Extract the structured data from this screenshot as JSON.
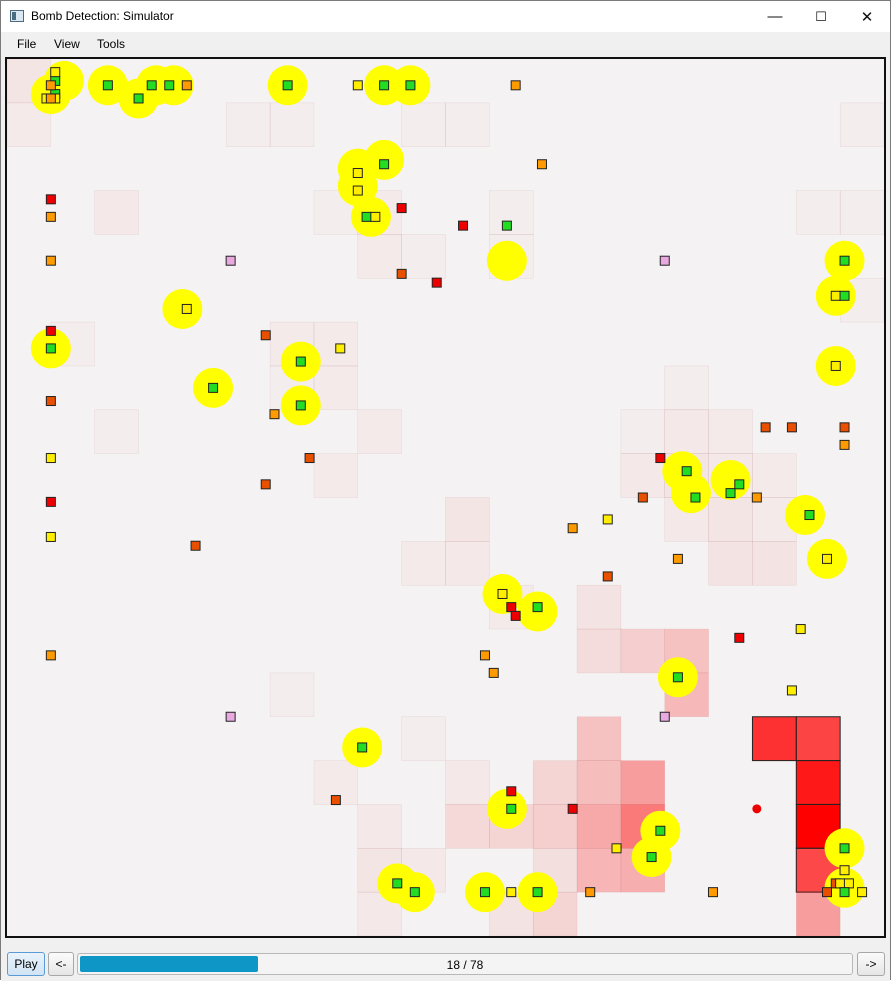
{
  "window": {
    "title": "Bomb Detection: Simulator",
    "minimize": "—",
    "maximize": "☐",
    "close": "✕"
  },
  "menu": [
    "File",
    "View",
    "Tools"
  ],
  "colors": {
    "background": "#f4f2f2",
    "detector_disc": "#ffff00",
    "agent_green": "#22dd22",
    "agent_yellow": "#ffee00",
    "agent_orange": "#ff9a00",
    "agent_dark_orange": "#e85000",
    "agent_red": "#ee0000",
    "agent_pink": "#e8a8e0",
    "heat": "#ff0000",
    "bomb_marker": "#ee0000"
  },
  "grid": {
    "cols": 20,
    "rows": 20
  },
  "heatmap": [
    {
      "c": 0,
      "r": 0,
      "v": 0.05
    },
    {
      "c": 0,
      "r": 1,
      "v": 0.03
    },
    {
      "c": 5,
      "r": 1,
      "v": 0.02
    },
    {
      "c": 6,
      "r": 1,
      "v": 0.02
    },
    {
      "c": 9,
      "r": 1,
      "v": 0.02
    },
    {
      "c": 10,
      "r": 1,
      "v": 0.02
    },
    {
      "c": 19,
      "r": 1,
      "v": 0.02
    },
    {
      "c": 2,
      "r": 3,
      "v": 0.04
    },
    {
      "c": 7,
      "r": 3,
      "v": 0.02
    },
    {
      "c": 8,
      "r": 3,
      "v": 0.03
    },
    {
      "c": 11,
      "r": 3,
      "v": 0.02
    },
    {
      "c": 18,
      "r": 3,
      "v": 0.02
    },
    {
      "c": 19,
      "r": 3,
      "v": 0.02
    },
    {
      "c": 8,
      "r": 4,
      "v": 0.03
    },
    {
      "c": 9,
      "r": 4,
      "v": 0.02
    },
    {
      "c": 11,
      "r": 4,
      "v": 0.02
    },
    {
      "c": 19,
      "r": 5,
      "v": 0.02
    },
    {
      "c": 6,
      "r": 6,
      "v": 0.03
    },
    {
      "c": 7,
      "r": 6,
      "v": 0.03
    },
    {
      "c": 1,
      "r": 6,
      "v": 0.02
    },
    {
      "c": 6,
      "r": 7,
      "v": 0.02
    },
    {
      "c": 7,
      "r": 7,
      "v": 0.03
    },
    {
      "c": 15,
      "r": 7,
      "v": 0.02
    },
    {
      "c": 2,
      "r": 8,
      "v": 0.02
    },
    {
      "c": 8,
      "r": 8,
      "v": 0.03
    },
    {
      "c": 14,
      "r": 8,
      "v": 0.02
    },
    {
      "c": 15,
      "r": 8,
      "v": 0.04
    },
    {
      "c": 16,
      "r": 8,
      "v": 0.03
    },
    {
      "c": 7,
      "r": 9,
      "v": 0.03
    },
    {
      "c": 14,
      "r": 9,
      "v": 0.04
    },
    {
      "c": 15,
      "r": 9,
      "v": 0.05
    },
    {
      "c": 16,
      "r": 9,
      "v": 0.04
    },
    {
      "c": 17,
      "r": 9,
      "v": 0.03
    },
    {
      "c": 10,
      "r": 10,
      "v": 0.05
    },
    {
      "c": 15,
      "r": 10,
      "v": 0.04
    },
    {
      "c": 16,
      "r": 10,
      "v": 0.05
    },
    {
      "c": 17,
      "r": 10,
      "v": 0.03
    },
    {
      "c": 9,
      "r": 11,
      "v": 0.03
    },
    {
      "c": 10,
      "r": 11,
      "v": 0.04
    },
    {
      "c": 16,
      "r": 11,
      "v": 0.06
    },
    {
      "c": 17,
      "r": 11,
      "v": 0.06
    },
    {
      "c": 11,
      "r": 12,
      "v": 0.03
    },
    {
      "c": 13,
      "r": 12,
      "v": 0.06
    },
    {
      "c": 13,
      "r": 13,
      "v": 0.09
    },
    {
      "c": 14,
      "r": 13,
      "v": 0.14
    },
    {
      "c": 15,
      "r": 13,
      "v": 0.2
    },
    {
      "c": 15,
      "r": 14,
      "v": 0.24
    },
    {
      "c": 6,
      "r": 14,
      "v": 0.02
    },
    {
      "c": 9,
      "r": 15,
      "v": 0.02
    },
    {
      "c": 13,
      "r": 15,
      "v": 0.2
    },
    {
      "c": 17,
      "r": 15,
      "v": 0.8
    },
    {
      "c": 18,
      "r": 15,
      "v": 0.72
    },
    {
      "c": 7,
      "r": 16,
      "v": 0.03
    },
    {
      "c": 10,
      "r": 16,
      "v": 0.04
    },
    {
      "c": 12,
      "r": 16,
      "v": 0.12
    },
    {
      "c": 13,
      "r": 16,
      "v": 0.22
    },
    {
      "c": 14,
      "r": 16,
      "v": 0.35
    },
    {
      "c": 18,
      "r": 16,
      "v": 0.9
    },
    {
      "c": 8,
      "r": 17,
      "v": 0.04
    },
    {
      "c": 10,
      "r": 17,
      "v": 0.1
    },
    {
      "c": 11,
      "r": 17,
      "v": 0.12
    },
    {
      "c": 12,
      "r": 17,
      "v": 0.15
    },
    {
      "c": 13,
      "r": 17,
      "v": 0.3
    },
    {
      "c": 14,
      "r": 17,
      "v": 0.5
    },
    {
      "c": 18,
      "r": 17,
      "v": 1.0
    },
    {
      "c": 8,
      "r": 18,
      "v": 0.05
    },
    {
      "c": 9,
      "r": 18,
      "v": 0.04
    },
    {
      "c": 12,
      "r": 18,
      "v": 0.08
    },
    {
      "c": 13,
      "r": 18,
      "v": 0.25
    },
    {
      "c": 14,
      "r": 18,
      "v": 0.28
    },
    {
      "c": 18,
      "r": 18,
      "v": 0.7
    },
    {
      "c": 8,
      "r": 19,
      "v": 0.04
    },
    {
      "c": 11,
      "r": 19,
      "v": 0.06
    },
    {
      "c": 12,
      "r": 19,
      "v": 0.12
    },
    {
      "c": 18,
      "r": 19,
      "v": 0.35
    }
  ],
  "detector_agents": [
    {
      "c": 1.3,
      "r": 0.5
    },
    {
      "c": 1.0,
      "r": 0.8
    },
    {
      "c": 2.3,
      "r": 0.6
    },
    {
      "c": 3.4,
      "r": 0.6
    },
    {
      "c": 3.0,
      "r": 0.9
    },
    {
      "c": 3.8,
      "r": 0.6
    },
    {
      "c": 6.4,
      "r": 0.6
    },
    {
      "c": 8.6,
      "r": 0.6
    },
    {
      "c": 9.2,
      "r": 0.6
    },
    {
      "c": 8.0,
      "r": 2.5
    },
    {
      "c": 8.6,
      "r": 2.3
    },
    {
      "c": 8.0,
      "r": 2.9
    },
    {
      "c": 8.3,
      "r": 3.6
    },
    {
      "c": 11.4,
      "r": 4.6
    },
    {
      "c": 4.0,
      "r": 5.7
    },
    {
      "c": 1.0,
      "r": 6.6
    },
    {
      "c": 6.7,
      "r": 6.9
    },
    {
      "c": 4.7,
      "r": 7.5
    },
    {
      "c": 6.7,
      "r": 7.9
    },
    {
      "c": 19.1,
      "r": 4.6
    },
    {
      "c": 18.9,
      "r": 5.4
    },
    {
      "c": 18.9,
      "r": 7.0
    },
    {
      "c": 15.4,
      "r": 9.4
    },
    {
      "c": 15.6,
      "r": 9.9
    },
    {
      "c": 16.5,
      "r": 9.6
    },
    {
      "c": 18.2,
      "r": 10.4
    },
    {
      "c": 18.7,
      "r": 11.4
    },
    {
      "c": 11.3,
      "r": 12.2
    },
    {
      "c": 12.1,
      "r": 12.6
    },
    {
      "c": 15.3,
      "r": 14.1
    },
    {
      "c": 8.1,
      "r": 15.7
    },
    {
      "c": 11.4,
      "r": 17.1
    },
    {
      "c": 14.9,
      "r": 17.6
    },
    {
      "c": 14.7,
      "r": 18.2
    },
    {
      "c": 19.1,
      "r": 18.0
    },
    {
      "c": 19.1,
      "r": 18.9
    },
    {
      "c": 8.9,
      "r": 18.8
    },
    {
      "c": 9.3,
      "r": 19.0
    },
    {
      "c": 10.9,
      "r": 19.0
    },
    {
      "c": 12.1,
      "r": 19.0
    }
  ],
  "agents": [
    {
      "c": 1.1,
      "r": 0.5,
      "k": "g"
    },
    {
      "c": 1.1,
      "r": 0.8,
      "k": "g"
    },
    {
      "c": 0.9,
      "r": 0.9,
      "k": "y"
    },
    {
      "c": 1.1,
      "r": 0.9,
      "k": "y"
    },
    {
      "c": 2.3,
      "r": 0.6,
      "k": "g"
    },
    {
      "c": 1.1,
      "r": 0.3,
      "k": "y"
    },
    {
      "c": 1.0,
      "r": 0.6,
      "k": "o"
    },
    {
      "c": 1.0,
      "r": 0.9,
      "k": "o"
    },
    {
      "c": 3.0,
      "r": 0.9,
      "k": "g"
    },
    {
      "c": 3.3,
      "r": 0.6,
      "k": "g"
    },
    {
      "c": 3.7,
      "r": 0.6,
      "k": "g"
    },
    {
      "c": 4.1,
      "r": 0.6,
      "k": "o"
    },
    {
      "c": 6.4,
      "r": 0.6,
      "k": "g"
    },
    {
      "c": 8.0,
      "r": 0.6,
      "k": "y"
    },
    {
      "c": 8.6,
      "r": 0.6,
      "k": "g"
    },
    {
      "c": 9.2,
      "r": 0.6,
      "k": "g"
    },
    {
      "c": 11.6,
      "r": 0.6,
      "k": "o"
    },
    {
      "c": 12.2,
      "r": 2.4,
      "k": "o"
    },
    {
      "c": 8.0,
      "r": 2.6,
      "k": "y"
    },
    {
      "c": 8.6,
      "r": 2.4,
      "k": "g"
    },
    {
      "c": 8.0,
      "r": 3.0,
      "k": "y"
    },
    {
      "c": 1.0,
      "r": 3.2,
      "k": "r"
    },
    {
      "c": 9.0,
      "r": 3.4,
      "k": "r"
    },
    {
      "c": 1.0,
      "r": 3.6,
      "k": "o"
    },
    {
      "c": 8.2,
      "r": 3.6,
      "k": "g"
    },
    {
      "c": 8.4,
      "r": 3.6,
      "k": "y"
    },
    {
      "c": 10.4,
      "r": 3.8,
      "k": "r"
    },
    {
      "c": 11.4,
      "r": 3.8,
      "k": "g"
    },
    {
      "c": 1.0,
      "r": 4.6,
      "k": "o"
    },
    {
      "c": 5.1,
      "r": 4.6,
      "k": "p"
    },
    {
      "c": 15.0,
      "r": 4.6,
      "k": "p"
    },
    {
      "c": 19.1,
      "r": 4.6,
      "k": "g"
    },
    {
      "c": 9.0,
      "r": 4.9,
      "k": "do"
    },
    {
      "c": 9.8,
      "r": 5.1,
      "k": "r"
    },
    {
      "c": 18.9,
      "r": 5.4,
      "k": "y"
    },
    {
      "c": 19.1,
      "r": 5.4,
      "k": "g"
    },
    {
      "c": 4.1,
      "r": 5.7,
      "k": "y"
    },
    {
      "c": 1.0,
      "r": 6.2,
      "k": "r"
    },
    {
      "c": 5.9,
      "r": 6.3,
      "k": "do"
    },
    {
      "c": 1.0,
      "r": 6.6,
      "k": "g"
    },
    {
      "c": 7.6,
      "r": 6.6,
      "k": "y"
    },
    {
      "c": 6.7,
      "r": 6.9,
      "k": "g"
    },
    {
      "c": 4.7,
      "r": 7.5,
      "k": "g"
    },
    {
      "c": 18.9,
      "r": 7.0,
      "k": "y"
    },
    {
      "c": 1.0,
      "r": 7.8,
      "k": "do"
    },
    {
      "c": 6.7,
      "r": 7.9,
      "k": "g"
    },
    {
      "c": 6.1,
      "r": 8.1,
      "k": "o"
    },
    {
      "c": 17.3,
      "r": 8.4,
      "k": "do"
    },
    {
      "c": 17.9,
      "r": 8.4,
      "k": "do"
    },
    {
      "c": 19.1,
      "r": 8.4,
      "k": "do"
    },
    {
      "c": 19.1,
      "r": 8.8,
      "k": "o"
    },
    {
      "c": 1.0,
      "r": 9.1,
      "k": "y"
    },
    {
      "c": 6.9,
      "r": 9.1,
      "k": "do"
    },
    {
      "c": 14.9,
      "r": 9.1,
      "k": "r"
    },
    {
      "c": 15.5,
      "r": 9.4,
      "k": "g"
    },
    {
      "c": 5.9,
      "r": 9.7,
      "k": "do"
    },
    {
      "c": 16.7,
      "r": 9.7,
      "k": "g"
    },
    {
      "c": 16.5,
      "r": 9.9,
      "k": "g"
    },
    {
      "c": 1.0,
      "r": 10.1,
      "k": "r"
    },
    {
      "c": 14.5,
      "r": 10.0,
      "k": "do"
    },
    {
      "c": 15.7,
      "r": 10.0,
      "k": "g"
    },
    {
      "c": 17.1,
      "r": 10.0,
      "k": "o"
    },
    {
      "c": 13.7,
      "r": 10.5,
      "k": "y"
    },
    {
      "c": 18.3,
      "r": 10.4,
      "k": "g"
    },
    {
      "c": 12.9,
      "r": 10.7,
      "k": "o"
    },
    {
      "c": 1.0,
      "r": 10.9,
      "k": "y"
    },
    {
      "c": 4.3,
      "r": 11.1,
      "k": "do"
    },
    {
      "c": 15.3,
      "r": 11.4,
      "k": "o"
    },
    {
      "c": 18.7,
      "r": 11.4,
      "k": "y"
    },
    {
      "c": 13.7,
      "r": 11.8,
      "k": "do"
    },
    {
      "c": 11.3,
      "r": 12.2,
      "k": "y"
    },
    {
      "c": 11.5,
      "r": 12.5,
      "k": "r"
    },
    {
      "c": 12.1,
      "r": 12.5,
      "k": "g"
    },
    {
      "c": 11.6,
      "r": 12.7,
      "k": "r"
    },
    {
      "c": 18.1,
      "r": 13.0,
      "k": "y"
    },
    {
      "c": 16.7,
      "r": 13.2,
      "k": "r"
    },
    {
      "c": 10.9,
      "r": 13.6,
      "k": "o"
    },
    {
      "c": 11.1,
      "r": 14.0,
      "k": "o"
    },
    {
      "c": 1.0,
      "r": 13.6,
      "k": "o"
    },
    {
      "c": 15.3,
      "r": 14.1,
      "k": "g"
    },
    {
      "c": 17.9,
      "r": 14.4,
      "k": "y"
    },
    {
      "c": 5.1,
      "r": 15.0,
      "k": "p"
    },
    {
      "c": 15.0,
      "r": 15.0,
      "k": "p"
    },
    {
      "c": 8.1,
      "r": 15.7,
      "k": "g"
    },
    {
      "c": 11.5,
      "r": 16.7,
      "k": "r"
    },
    {
      "c": 7.5,
      "r": 16.9,
      "k": "do"
    },
    {
      "c": 11.5,
      "r": 17.1,
      "k": "g"
    },
    {
      "c": 12.9,
      "r": 17.1,
      "k": "r"
    },
    {
      "c": 14.9,
      "r": 17.6,
      "k": "g"
    },
    {
      "c": 13.9,
      "r": 18.0,
      "k": "y"
    },
    {
      "c": 14.7,
      "r": 18.2,
      "k": "g"
    },
    {
      "c": 19.1,
      "r": 18.0,
      "k": "g"
    },
    {
      "c": 19.1,
      "r": 18.5,
      "k": "y"
    },
    {
      "c": 18.9,
      "r": 18.8,
      "k": "do"
    },
    {
      "c": 19.0,
      "r": 18.8,
      "k": "y"
    },
    {
      "c": 19.2,
      "r": 18.8,
      "k": "y"
    },
    {
      "c": 8.9,
      "r": 18.8,
      "k": "g"
    },
    {
      "c": 9.3,
      "r": 19.0,
      "k": "g"
    },
    {
      "c": 10.9,
      "r": 19.0,
      "k": "g"
    },
    {
      "c": 11.5,
      "r": 19.0,
      "k": "y"
    },
    {
      "c": 12.1,
      "r": 19.0,
      "k": "g"
    },
    {
      "c": 13.3,
      "r": 19.0,
      "k": "o"
    },
    {
      "c": 16.1,
      "r": 19.0,
      "k": "o"
    },
    {
      "c": 18.7,
      "r": 19.0,
      "k": "do"
    },
    {
      "c": 19.1,
      "r": 19.0,
      "k": "g"
    },
    {
      "c": 19.5,
      "r": 19.0,
      "k": "y"
    }
  ],
  "bombs": [
    {
      "c": 17.1,
      "r": 17.1
    }
  ],
  "controls": {
    "play": "Play",
    "prev": "<-",
    "next": "->",
    "step": 18,
    "total": 78,
    "progress_label": "18 / 78"
  }
}
